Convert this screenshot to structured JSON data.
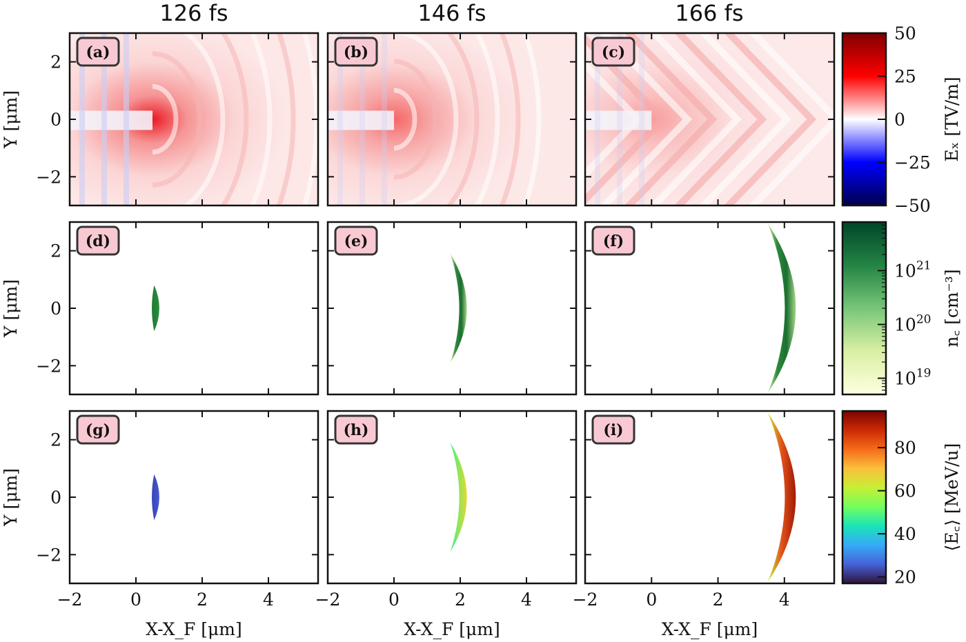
{
  "chart_data": {
    "type": "heatmap",
    "title": "",
    "column_titles": [
      "126 fs",
      "146 fs",
      "166 fs"
    ],
    "xlabel": "X-X_F [μm]",
    "ylabel": "Y [μm]",
    "xlim": [
      -2,
      5.5
    ],
    "ylim": [
      -3,
      3
    ],
    "xticks": [
      -2,
      0,
      2,
      4
    ],
    "xtick_labels": [
      "−2",
      "0",
      "2",
      "4"
    ],
    "yticks": [
      -2,
      0,
      2
    ],
    "ytick_labels": [
      "−2",
      "0",
      "2"
    ],
    "rows": [
      {
        "quantity": "E_x",
        "colorbar": {
          "label": "E_x [TV/m]",
          "scale": "linear",
          "range": [
            -50,
            50
          ],
          "ticks": [
            50,
            25,
            0,
            -25,
            -50
          ],
          "tick_labels": [
            "50",
            "25",
            "0",
            "−25",
            "−50"
          ],
          "colormap": "seismic",
          "stops": [
            "#00004c",
            "#0000ff",
            "#ffffff",
            "#ff0000",
            "#800000"
          ]
        },
        "panels": [
          {
            "tag": "(a)",
            "time": "126 fs",
            "peak_x": 0.5,
            "peak_y": 0.0,
            "peak_value": 30,
            "pattern": "spherical-wavefronts"
          },
          {
            "tag": "(b)",
            "time": "146 fs",
            "peak_x": 0.0,
            "peak_y": 0.0,
            "peak_value": 20,
            "pattern": "curved-wavefronts"
          },
          {
            "tag": "(c)",
            "time": "166 fs",
            "peak_x": 0.0,
            "peak_y": 0.0,
            "peak_value": 10,
            "pattern": "chevron-grid"
          }
        ]
      },
      {
        "quantity": "n_c",
        "colorbar": {
          "label": "n_c [cm^-3]",
          "scale": "log",
          "range": [
            5e+18,
            8e+21
          ],
          "ticks": [
            1e+21,
            1e+20,
            1e+19
          ],
          "tick_labels": [
            "10^21",
            "10^20",
            "10^19"
          ],
          "colormap": "YlGn",
          "stops": [
            "#ffffe0",
            "#d9f0a3",
            "#78c679",
            "#238443",
            "#004529"
          ]
        },
        "panels": [
          {
            "tag": "(d)",
            "time": "126 fs",
            "crescent": {
              "x_vertex": 0.5,
              "x_tip": 0.55,
              "x_front": 0.8,
              "y_half": 0.8
            },
            "color": "#1f7a35"
          },
          {
            "tag": "(e)",
            "time": "146 fs",
            "crescent": {
              "x_vertex": 2.3,
              "x_tip": 1.7,
              "x_front": 2.5,
              "y_half": 1.9
            },
            "color": "#2e8b3e"
          },
          {
            "tag": "(f)",
            "time": "166 fs",
            "crescent": {
              "x_vertex": 4.6,
              "x_tip": 3.5,
              "x_front": 4.85,
              "y_half": 2.95
            },
            "color": "#3a9a48"
          }
        ]
      },
      {
        "quantity": "<E_C>",
        "colorbar": {
          "label": "⟨E_C⟩ [MeV/u]",
          "scale": "linear",
          "range": [
            17,
            97
          ],
          "ticks": [
            80,
            60,
            40,
            20
          ],
          "tick_labels": [
            "80",
            "60",
            "40",
            "20"
          ],
          "colormap": "turbo",
          "stops": [
            "#30123b",
            "#4662d7",
            "#36aaf9",
            "#1ae4b6",
            "#72fe5e",
            "#c7ef34",
            "#fabf3b",
            "#f66b19",
            "#cb2a04",
            "#7a0403"
          ]
        },
        "panels": [
          {
            "tag": "(g)",
            "time": "126 fs",
            "crescent": {
              "x_vertex": 0.5,
              "x_tip": 0.55,
              "x_front": 0.8,
              "y_half": 0.8
            },
            "energy_range": [
              20,
              25
            ],
            "color": "#3f4fc7"
          },
          {
            "tag": "(h)",
            "time": "146 fs",
            "crescent": {
              "x_vertex": 2.3,
              "x_tip": 1.7,
              "x_front": 2.5,
              "y_half": 1.9
            },
            "energy_range": [
              50,
              70
            ],
            "color": "#b7f13a"
          },
          {
            "tag": "(i)",
            "time": "166 fs",
            "crescent": {
              "x_vertex": 4.6,
              "x_tip": 3.5,
              "x_front": 4.85,
              "y_half": 2.95
            },
            "energy_range": [
              60,
              95
            ],
            "color": "#e2511a"
          }
        ]
      }
    ]
  }
}
